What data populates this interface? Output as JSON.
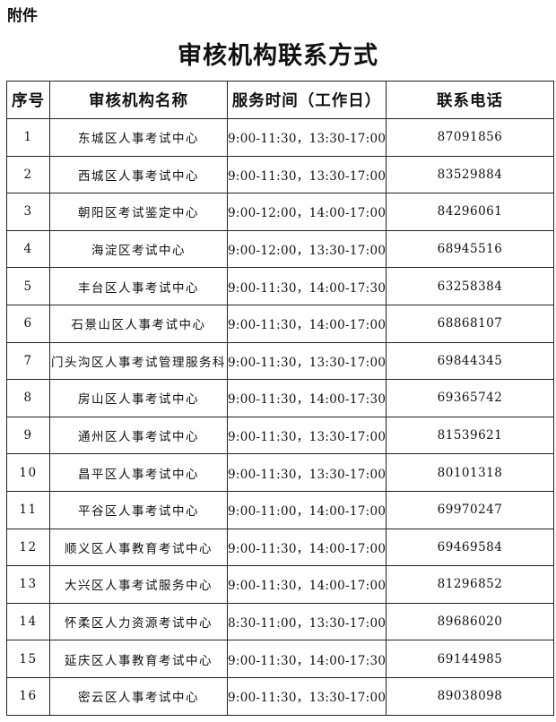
{
  "attachment_label": "附件",
  "title": "审核机构联系方式",
  "table": {
    "headers": [
      "序号",
      "审核机构名称",
      "服务时间（工作日）",
      "联系电话"
    ],
    "rows": [
      {
        "no": "1",
        "name": "东城区人事考试中心",
        "time": "9:00-11:30，13:30-17:00",
        "phone": "87091856"
      },
      {
        "no": "2",
        "name": "西城区人事考试中心",
        "time": "9:00-11:30，13:30-17:00",
        "phone": "83529884"
      },
      {
        "no": "3",
        "name": "朝阳区考试鉴定中心",
        "time": "9:00-12:00，14:00-17:00",
        "phone": "84296061"
      },
      {
        "no": "4",
        "name": "海淀区考试中心",
        "time": "9:00-12:00，13:30-17:00",
        "phone": "68945516"
      },
      {
        "no": "5",
        "name": "丰台区人事考试中心",
        "time": "9:00-11:30，14:00-17:30",
        "phone": "63258384"
      },
      {
        "no": "6",
        "name": "石景山区人事考试中心",
        "time": "9:00-11:30，14:00-17:00",
        "phone": "68868107"
      },
      {
        "no": "7",
        "name": "门头沟区人事考试管理服务科",
        "time": "9:00-11:30，13:30-17:00",
        "phone": "69844345"
      },
      {
        "no": "8",
        "name": "房山区人事考试中心",
        "time": "9:00-11:30，14:00-17:30",
        "phone": "69365742"
      },
      {
        "no": "9",
        "name": "通州区人事考试中心",
        "time": "9:00-11:30，13:30-17:00",
        "phone": "81539621"
      },
      {
        "no": "10",
        "name": "昌平区人事考试中心",
        "time": "9:00-11:30，13:30-17:00",
        "phone": "80101318"
      },
      {
        "no": "11",
        "name": "平谷区人事考试中心",
        "time": "9:00-11:00，14:00-17:00",
        "phone": "69970247"
      },
      {
        "no": "12",
        "name": "顺义区人事教育考试中心",
        "time": "9:00-11:30，14:00-17:00",
        "phone": "69469584"
      },
      {
        "no": "13",
        "name": "大兴区人事考试服务中心",
        "time": "9:00-11:30，14:00-17:00",
        "phone": "81296852"
      },
      {
        "no": "14",
        "name": "怀柔区人力资源考试中心",
        "time": "8:30-11:00，13:30-17:00",
        "phone": "89686020"
      },
      {
        "no": "15",
        "name": "延庆区人事教育考试中心",
        "time": "9:00-11:30，14:00-17:30",
        "phone": "69144985"
      },
      {
        "no": "16",
        "name": "密云区人事考试中心",
        "time": "9:00-11:30，13:30-17:00",
        "phone": "89038098"
      }
    ]
  }
}
